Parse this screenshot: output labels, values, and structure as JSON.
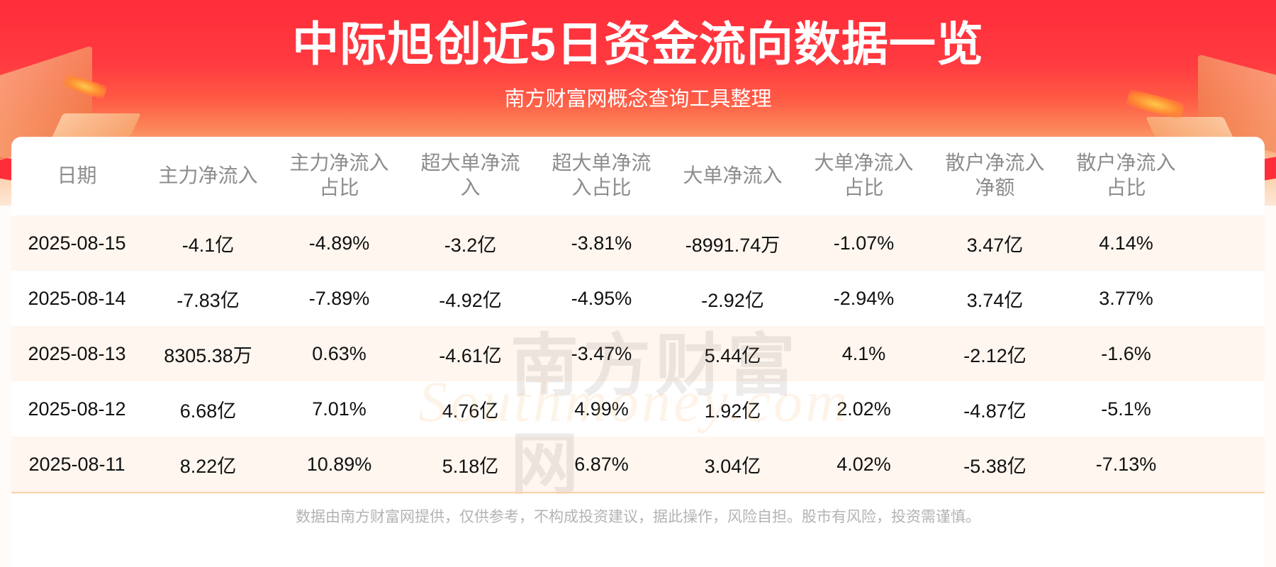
{
  "header": {
    "title": "中际旭创近5日资金流向数据一览",
    "subtitle": "南方财富网概念查询工具整理"
  },
  "watermark": {
    "cn": "南方财富网",
    "en": "Southmoney.com"
  },
  "table": {
    "columns": [
      "日期",
      "主力净流入",
      "主力净流入\n占比",
      "超大单净流\n入",
      "超大单净流\n入占比",
      "大单净流入",
      "大单净流入\n占比",
      "散户净流入\n净额",
      "散户净流入\n占比"
    ],
    "rows": [
      [
        "2025-08-15",
        "-4.1亿",
        "-4.89%",
        "-3.2亿",
        "-3.81%",
        "-8991.74万",
        "-1.07%",
        "3.47亿",
        "4.14%"
      ],
      [
        "2025-08-14",
        "-7.83亿",
        "-7.89%",
        "-4.92亿",
        "-4.95%",
        "-2.92亿",
        "-2.94%",
        "3.74亿",
        "3.77%"
      ],
      [
        "2025-08-13",
        "8305.38万",
        "0.63%",
        "-4.61亿",
        "-3.47%",
        "5.44亿",
        "4.1%",
        "-2.12亿",
        "-1.6%"
      ],
      [
        "2025-08-12",
        "6.68亿",
        "7.01%",
        "4.76亿",
        "4.99%",
        "1.92亿",
        "2.02%",
        "-4.87亿",
        "-5.1%"
      ],
      [
        "2025-08-11",
        "8.22亿",
        "10.89%",
        "5.18亿",
        "6.87%",
        "3.04亿",
        "4.02%",
        "-5.38亿",
        "-7.13%"
      ]
    ]
  },
  "footer": {
    "disclaimer": "数据由南方财富网提供，仅供参考，不构成投资建议，据此操作，风险自担。股市有风险，投资需谨慎。"
  },
  "colors": {
    "banner_red": "#ff2d3a",
    "row_stripe": "#fef6ef",
    "header_text": "#8c8c8c",
    "cell_text": "#111111",
    "rule": "#fcd0a6"
  }
}
